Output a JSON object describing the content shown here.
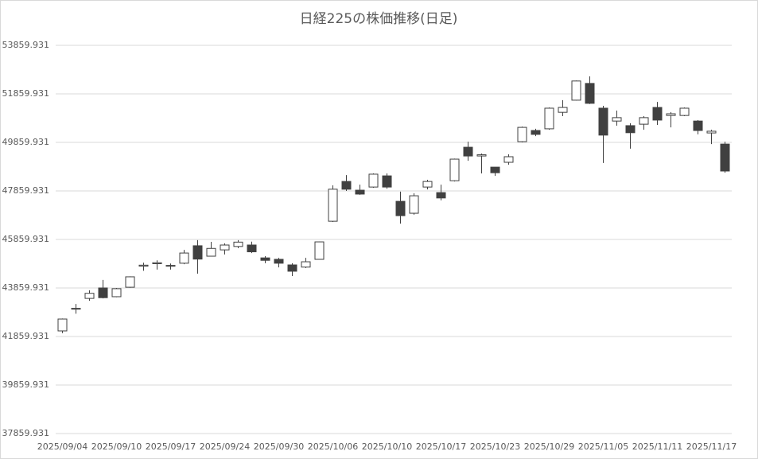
{
  "chart_data": {
    "type": "candlestick",
    "title": "日経225の株価推移(日足)",
    "categories": [
      "2025/09/04",
      null,
      null,
      null,
      "2025/09/10",
      null,
      null,
      null,
      "2025/09/17",
      null,
      null,
      null,
      "2025/09/24",
      null,
      null,
      null,
      "2025/09/30",
      null,
      null,
      null,
      "2025/10/06",
      null,
      null,
      null,
      "2025/10/10",
      null,
      null,
      null,
      "2025/10/17",
      null,
      null,
      null,
      "2025/10/23",
      null,
      null,
      null,
      "2025/10/29",
      null,
      null,
      null,
      "2025/11/05",
      null,
      null,
      null,
      "2025/11/11",
      null,
      null,
      null,
      "2025/11/17",
      null
    ],
    "open": [
      42090,
      42990,
      43430,
      43860,
      43500,
      43890,
      44760,
      44860,
      44780,
      44880,
      45600,
      45170,
      45430,
      45570,
      45630,
      45100,
      45040,
      44810,
      44720,
      45040,
      46610,
      48250,
      47890,
      48020,
      48480,
      47430,
      46940,
      48020,
      47790,
      48280,
      49660,
      49300,
      48840,
      49040,
      49890,
      50350,
      50420,
      51100,
      51600,
      52290,
      51270,
      50740,
      50550,
      50610,
      51300,
      50970,
      50970,
      50740,
      50250,
      49790
    ],
    "high": [
      42600,
      43200,
      43760,
      44190,
      43860,
      44340,
      44900,
      45000,
      44870,
      45430,
      45830,
      45760,
      45700,
      45830,
      45770,
      45170,
      45100,
      44880,
      45100,
      45770,
      48090,
      48510,
      48120,
      48580,
      48580,
      47830,
      47760,
      48320,
      48120,
      49190,
      49890,
      49400,
      48840,
      49370,
      50510,
      50420,
      51300,
      51600,
      52410,
      52580,
      51370,
      51170,
      50650,
      50940,
      51530,
      51110,
      51300,
      50780,
      50380,
      49890
    ],
    "low": [
      42000,
      42800,
      43330,
      43430,
      43480,
      43870,
      44570,
      44620,
      44620,
      44840,
      44450,
      45170,
      45240,
      45500,
      45300,
      44880,
      44710,
      44350,
      44680,
      45030,
      46580,
      47860,
      47700,
      47990,
      47950,
      46510,
      46880,
      47920,
      47470,
      48250,
      49100,
      48580,
      48480,
      48940,
      49860,
      50120,
      50380,
      50940,
      51580,
      51440,
      49010,
      50550,
      49600,
      50380,
      50580,
      50480,
      50940,
      50190,
      49790,
      48610
    ],
    "close": [
      42580,
      43020,
      43640,
      43460,
      43830,
      44320,
      44800,
      44900,
      44790,
      45300,
      45050,
      45490,
      45630,
      45750,
      45350,
      45000,
      44880,
      44550,
      44940,
      45760,
      47930,
      47930,
      47730,
      48550,
      48020,
      46840,
      47660,
      48250,
      47570,
      49170,
      49300,
      49350,
      48610,
      49270,
      50480,
      50190,
      51270,
      51300,
      52390,
      51470,
      50160,
      50880,
      50260,
      50880,
      50780,
      51040,
      51270,
      50350,
      50320,
      48680
    ],
    "up_color": "#ffffff",
    "down_color": "#404040",
    "edge_color": "#404040",
    "ylim": [
      37859.931,
      53859.931
    ],
    "yticks": [
      37859.931,
      39859.931,
      41859.931,
      43859.931,
      45859.931,
      47859.931,
      49859.931,
      51859.931,
      53859.931
    ],
    "grid": true
  }
}
